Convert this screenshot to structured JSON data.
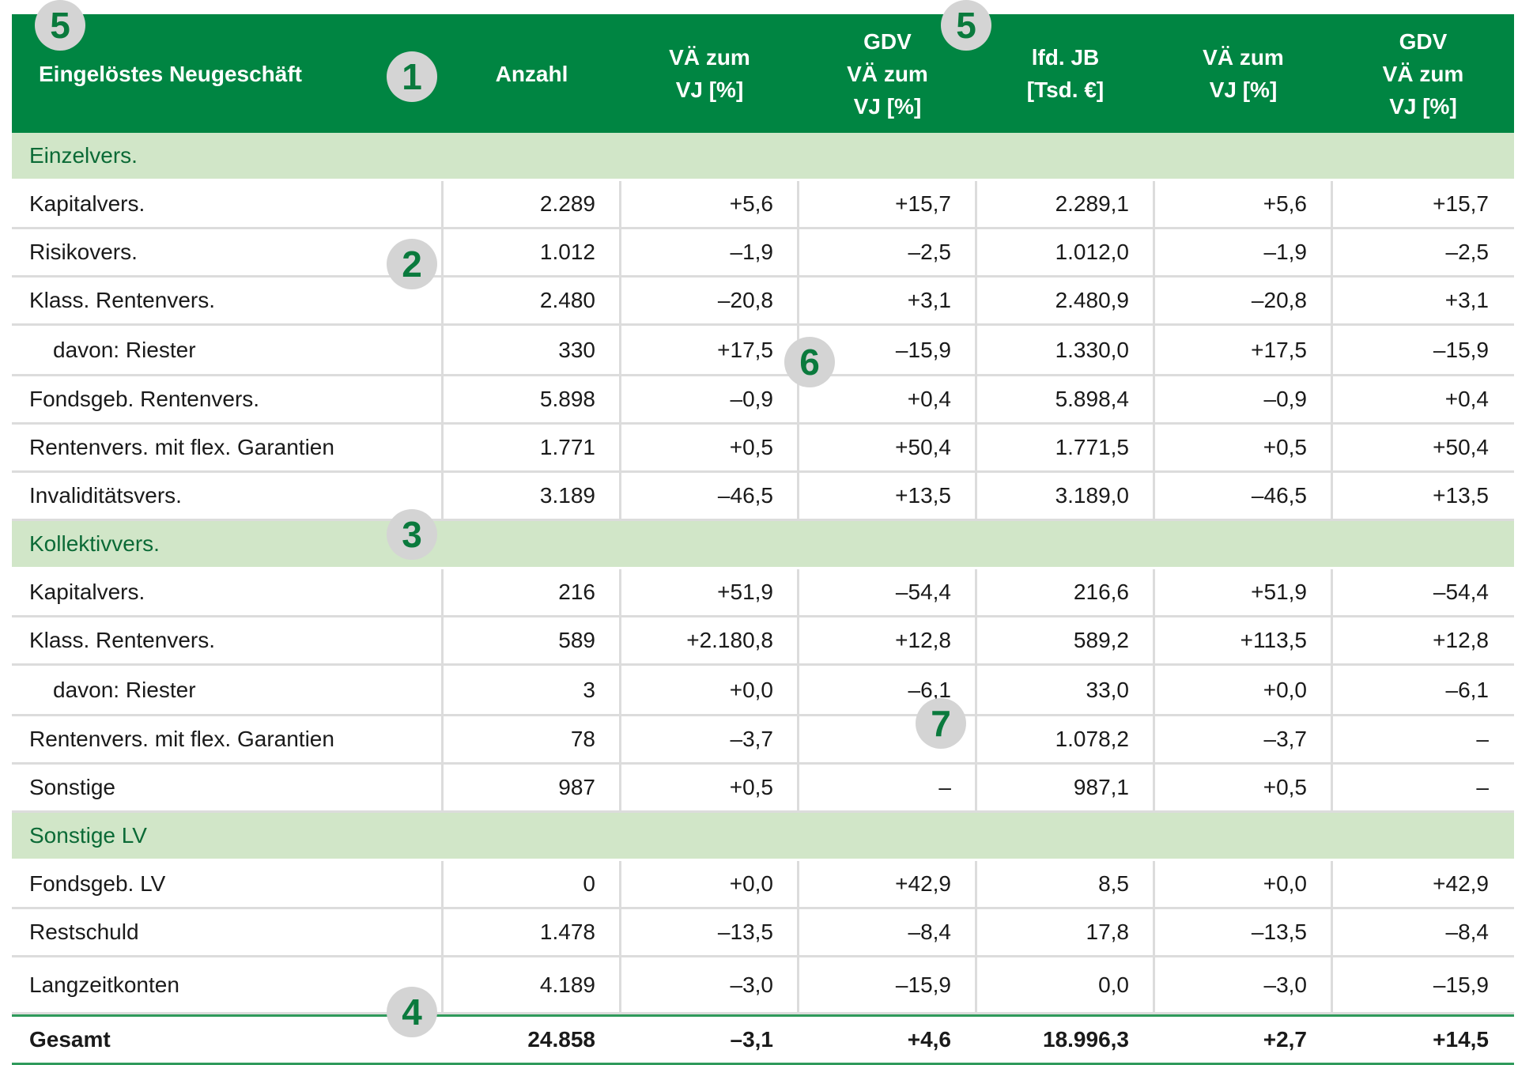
{
  "colors": {
    "header_bg": "#008542",
    "section_bg": "#d1e6c8",
    "section_text": "#0b6a36",
    "badge_bg": "#d4d4d4",
    "badge_text": "#0a7a3d"
  },
  "header": [
    "Eingelöstes Neugeschäft",
    "Anzahl",
    "VÄ zum\nVJ [%]",
    "GDV\nVÄ zum\nVJ [%]",
    "lfd. JB\n[Tsd. €]",
    "VÄ zum\nVJ [%]",
    "GDV\nVÄ zum\nVJ [%]"
  ],
  "sections": [
    {
      "title": "Einzelvers.",
      "rows": [
        {
          "label": "Kapitalvers.",
          "indent": false,
          "values": [
            "2.289",
            "+5,6",
            "+15,7",
            "2.289,1",
            "+5,6",
            "+15,7"
          ]
        },
        {
          "label": "Risikovers.",
          "indent": false,
          "values": [
            "1.012",
            "–1,9",
            "–2,5",
            "1.012,0",
            "–1,9",
            "–2,5"
          ]
        },
        {
          "label": "Klass. Rentenvers.",
          "indent": false,
          "values": [
            "2.480",
            "–20,8",
            "+3,1",
            "2.480,9",
            "–20,8",
            "+3,1"
          ]
        },
        {
          "label": "davon: Riester",
          "indent": true,
          "values": [
            "330",
            "+17,5",
            "–15,9",
            "1.330,0",
            "+17,5",
            "–15,9"
          ]
        },
        {
          "label": "Fondsgeb. Rentenvers.",
          "indent": false,
          "values": [
            "5.898",
            "–0,9",
            "+0,4",
            "5.898,4",
            "–0,9",
            "+0,4"
          ]
        },
        {
          "label": "Rentenvers. mit flex. Garantien",
          "indent": false,
          "values": [
            "1.771",
            "+0,5",
            "+50,4",
            "1.771,5",
            "+0,5",
            "+50,4"
          ]
        },
        {
          "label": "Invaliditätsvers.",
          "indent": false,
          "values": [
            "3.189",
            "–46,5",
            "+13,5",
            "3.189,0",
            "–46,5",
            "+13,5"
          ]
        }
      ]
    },
    {
      "title": "Kollektivvers.",
      "rows": [
        {
          "label": "Kapitalvers.",
          "indent": false,
          "values": [
            "216",
            "+51,9",
            "–54,4",
            "216,6",
            "+51,9",
            "–54,4"
          ]
        },
        {
          "label": "Klass. Rentenvers.",
          "indent": false,
          "values": [
            "589",
            "+2.180,8",
            "+12,8",
            "589,2",
            "+113,5",
            "+12,8"
          ]
        },
        {
          "label": "davon: Riester",
          "indent": true,
          "values": [
            "3",
            "+0,0",
            "–6,1",
            "33,0",
            "+0,0",
            "–6,1"
          ]
        },
        {
          "label": "Rentenvers. mit flex. Garantien",
          "indent": false,
          "values": [
            "78",
            "–3,7",
            "–",
            "1.078,2",
            "–3,7",
            "–"
          ]
        },
        {
          "label": "Sonstige",
          "indent": false,
          "values": [
            "987",
            "+0,5",
            "–",
            "987,1",
            "+0,5",
            "–"
          ]
        }
      ]
    },
    {
      "title": "Sonstige LV",
      "rows": [
        {
          "label": "Fondsgeb. LV",
          "indent": false,
          "values": [
            "0",
            "+0,0",
            "+42,9",
            "8,5",
            "+0,0",
            "+42,9"
          ]
        },
        {
          "label": "Restschuld",
          "indent": false,
          "values": [
            "1.478",
            "–13,5",
            "–8,4",
            "17,8",
            "–13,5",
            "–8,4"
          ]
        },
        {
          "label": "Langzeitkonten",
          "indent": false,
          "values": [
            "4.189",
            "–3,0",
            "–15,9",
            "0,0",
            "–3,0",
            "–15,9"
          ]
        }
      ]
    }
  ],
  "total": {
    "label": "Gesamt",
    "values": [
      "24.858",
      "–3,1",
      "+4,6",
      "18.996,3",
      "+2,7",
      "+14,5"
    ]
  },
  "badges": [
    "5",
    "1",
    "5",
    "2",
    "6",
    "3",
    "7",
    "4"
  ]
}
